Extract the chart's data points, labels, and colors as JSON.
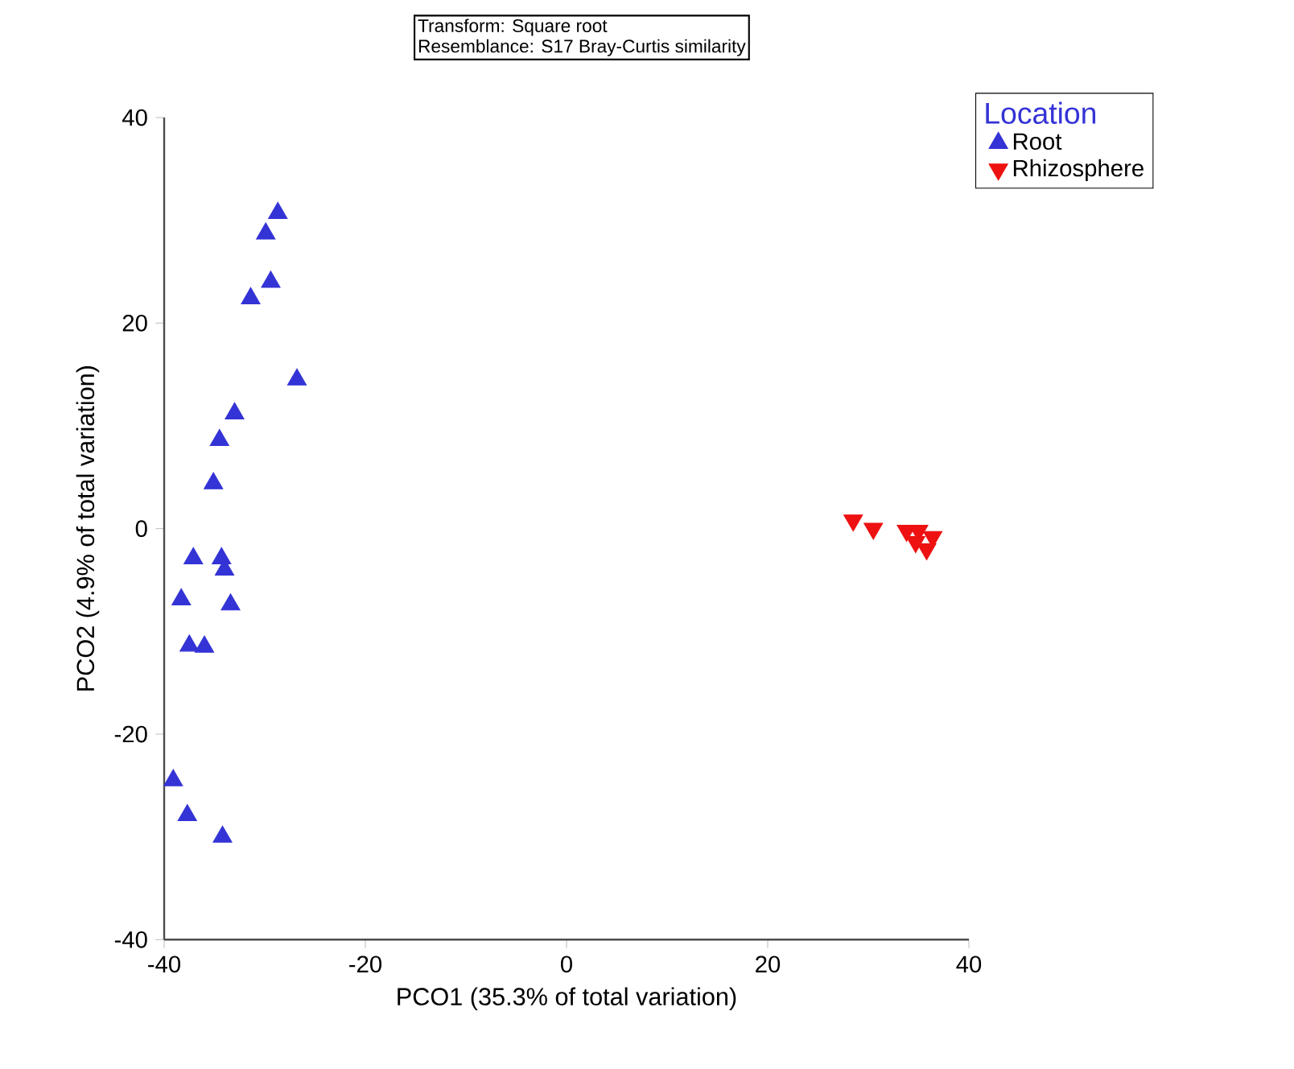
{
  "chart_data": {
    "type": "scatter",
    "xlabel": "PCO1 (35.3% of total variation)",
    "ylabel": "PCO2 (4.9% of total variation)",
    "legend_title": "Location",
    "legend": "top right",
    "grid": false,
    "annotations": [
      "Transform: Square root",
      "Resemblance: S17 Bray-Curtis similarity"
    ],
    "xlim": [
      -40,
      40
    ],
    "ylim": [
      -40,
      40
    ],
    "xticks": [
      -40,
      -20,
      0,
      20,
      40
    ],
    "yticks": [
      -40,
      -20,
      0,
      20,
      40
    ],
    "series": [
      {
        "name": "Root",
        "color": "#3333d6",
        "marker": "triangle",
        "x": [
          -28.7,
          -29.9,
          -29.4,
          -31.4,
          -26.8,
          -33.0,
          -34.5,
          -35.1,
          -37.1,
          -34.3,
          -34.0,
          -38.3,
          -33.4,
          -37.5,
          -36.0,
          -39.1,
          -37.7,
          -34.2
        ],
        "values": [
          30.7,
          28.7,
          24.0,
          22.4,
          14.5,
          11.2,
          8.6,
          4.4,
          -2.9,
          -2.9,
          -4.0,
          -6.9,
          -7.4,
          -11.4,
          -11.5,
          -24.5,
          -27.9,
          -30.0
        ]
      },
      {
        "name": "Rhizosphere",
        "color": "#ee1111",
        "marker": "triangle-down",
        "x": [
          28.5,
          30.5,
          33.8,
          35.0,
          34.7,
          36.4,
          35.8
        ],
        "values": [
          0.8,
          0.0,
          -0.2,
          -0.2,
          -1.3,
          -0.8,
          -2.0
        ]
      }
    ]
  }
}
